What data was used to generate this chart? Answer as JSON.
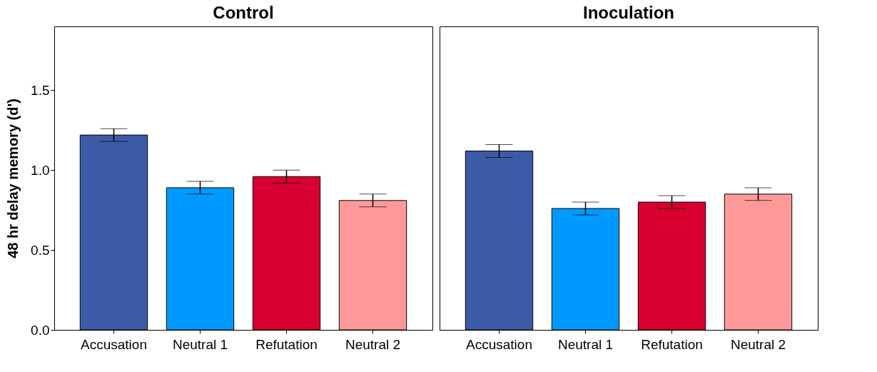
{
  "chart_data": [
    {
      "type": "bar",
      "title": "Control",
      "ylabel": "48 hr delay memory (d')",
      "categories": [
        "Accusation",
        "Neutral 1",
        "Refutation",
        "Neutral 2"
      ],
      "values": [
        1.22,
        0.89,
        0.96,
        0.81
      ],
      "errors": [
        0.04,
        0.04,
        0.04,
        0.04
      ],
      "colors": [
        "#3c5ba6",
        "#0099ff",
        "#d70030",
        "#ff9999"
      ],
      "ylim": [
        0,
        1.9
      ],
      "yticks": [
        {
          "value": 0,
          "label": "0.0"
        },
        0.5,
        {
          "value": 1,
          "label": "1.0"
        },
        1.5
      ],
      "grid": false
    },
    {
      "type": "bar",
      "title": "Inoculation",
      "categories": [
        "Accusation",
        "Neutral 1",
        "Refutation",
        "Neutral 2"
      ],
      "values": [
        1.12,
        0.76,
        0.8,
        0.85
      ],
      "errors": [
        0.04,
        0.04,
        0.04,
        0.04
      ],
      "colors": [
        "#3c5ba6",
        "#0099ff",
        "#d70030",
        "#ff9999"
      ],
      "ylim": [
        0,
        1.9
      ],
      "yticks": [
        0,
        0.5,
        1,
        1.5
      ],
      "tick_labels": "x",
      "grid": false
    }
  ]
}
